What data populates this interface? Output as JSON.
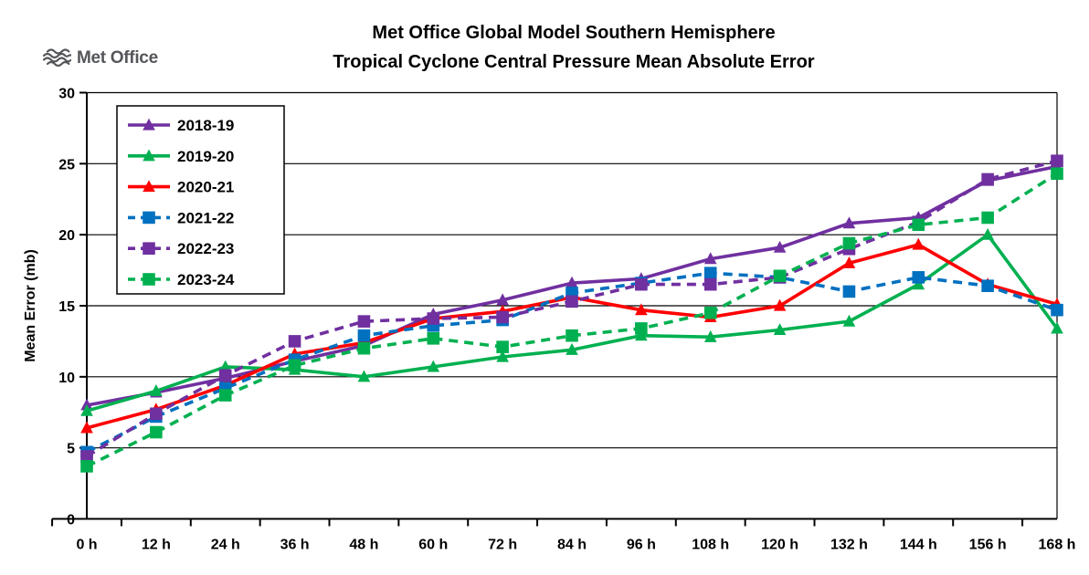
{
  "logo": {
    "text": "Met Office",
    "icon": "waves-icon",
    "color": "#54565A"
  },
  "chart_data": {
    "type": "line",
    "title": "Met Office Global Model Southern Hemisphere",
    "subtitle": "Tropical Cyclone Central Pressure Mean Absolute Error",
    "xlabel": "",
    "ylabel": "Mean Error (mb)",
    "ylim": [
      0,
      30
    ],
    "ytick_step": 5,
    "grid": true,
    "legend_position": "top-left-inside",
    "categories": [
      "0 h",
      "12 h",
      "24 h",
      "36 h",
      "48 h",
      "60 h",
      "72 h",
      "84 h",
      "96 h",
      "108 h",
      "120 h",
      "132 h",
      "144 h",
      "156 h",
      "168 h"
    ],
    "series": [
      {
        "name": "2018-19",
        "color": "#7030A0",
        "line_style": "solid",
        "marker": "triangle",
        "values": [
          8.0,
          8.9,
          9.9,
          11.1,
          12.2,
          14.4,
          15.4,
          16.6,
          16.9,
          18.3,
          19.1,
          20.8,
          21.2,
          23.8,
          24.8
        ]
      },
      {
        "name": "2019-20",
        "color": "#00B050",
        "line_style": "solid",
        "marker": "triangle",
        "values": [
          7.6,
          9.0,
          10.7,
          10.5,
          10.0,
          10.7,
          11.4,
          11.9,
          12.9,
          12.8,
          13.3,
          13.9,
          16.5,
          20.0,
          13.4
        ]
      },
      {
        "name": "2020-21",
        "color": "#FF0000",
        "line_style": "solid",
        "marker": "triangle",
        "values": [
          6.4,
          7.7,
          9.4,
          11.6,
          12.4,
          14.1,
          14.6,
          15.6,
          14.7,
          14.2,
          15.0,
          18.0,
          19.3,
          16.5,
          15.1
        ]
      },
      {
        "name": "2021-22",
        "color": "#0070C0",
        "line_style": "dashed",
        "marker": "square",
        "values": [
          4.7,
          7.2,
          9.2,
          11.2,
          12.9,
          13.6,
          14.0,
          15.9,
          16.6,
          17.3,
          17.0,
          16.0,
          17.0,
          16.4,
          14.7
        ]
      },
      {
        "name": "2022-23",
        "color": "#7030A0",
        "line_style": "dashed",
        "marker": "square",
        "values": [
          4.4,
          7.4,
          10.1,
          12.5,
          13.9,
          14.1,
          14.2,
          15.3,
          16.5,
          16.5,
          17.0,
          19.0,
          20.9,
          23.9,
          25.2
        ]
      },
      {
        "name": "2023-24",
        "color": "#00B050",
        "line_style": "dashed",
        "marker": "square",
        "values": [
          3.7,
          6.1,
          8.7,
          10.8,
          12.0,
          12.7,
          12.1,
          12.9,
          13.4,
          14.5,
          17.1,
          19.4,
          20.7,
          21.2,
          24.3
        ]
      }
    ]
  }
}
